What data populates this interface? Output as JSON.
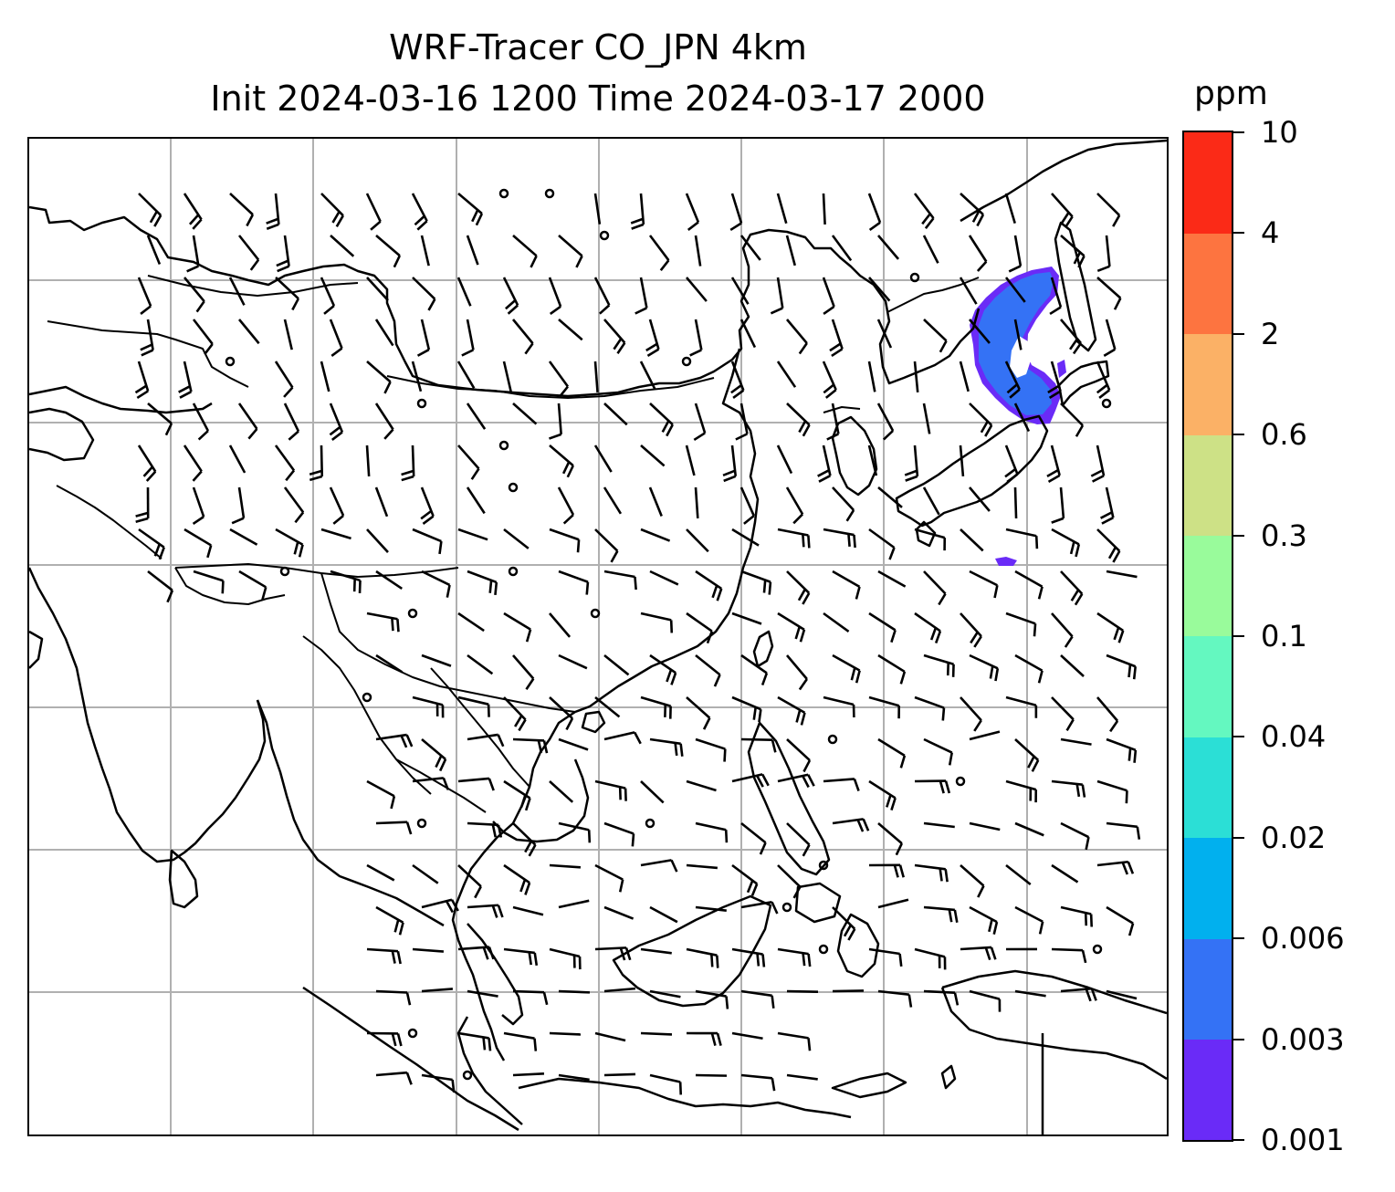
{
  "title": {
    "line1": "WRF-Tracer CO_JPN 4km",
    "line2": "Init 2024-03-16 1200 Time 2024-03-17 2000"
  },
  "colorbar": {
    "unit": "ppm",
    "levels": [
      "0.001",
      "0.003",
      "0.006",
      "0.02",
      "0.04",
      "0.1",
      "0.3",
      "0.6",
      "2",
      "4",
      "10"
    ],
    "colors": [
      "#6a2bf7",
      "#3472f5",
      "#01b0ee",
      "#2bdfd6",
      "#64f8c0",
      "#99fb9b",
      "#cde186",
      "#fbb166",
      "#fd7440",
      "#fb2a17"
    ]
  },
  "map": {
    "grid": "on",
    "plume_color": "#3472f5",
    "plume_edge_color": "#6a2bf7",
    "coast_color": "#000000",
    "grid_color": "#b0b0b0"
  }
}
